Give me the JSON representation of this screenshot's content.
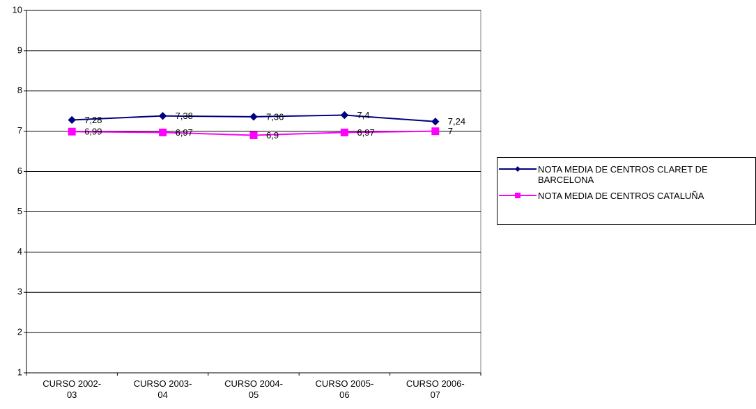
{
  "chart_data": {
    "type": "line",
    "categories": [
      "CURSO 2002-03",
      "CURSO 2003-04",
      "CURSO 2004-05",
      "CURSO 2005-06",
      "CURSO 2006-07"
    ],
    "series": [
      {
        "name": "NOTA MEDIA DE CENTROS CLARET DE BARCELONA",
        "color": "#000080",
        "marker": "diamond",
        "values": [
          7.28,
          7.38,
          7.36,
          7.4,
          7.24
        ],
        "value_labels": [
          "7,28",
          "7,38",
          "7,36",
          "7,4",
          "7,24"
        ]
      },
      {
        "name": "NOTA MEDIA DE CENTROS CATALUÑA",
        "color": "#ff00ff",
        "marker": "square",
        "values": [
          6.99,
          6.97,
          6.9,
          6.97,
          7
        ],
        "value_labels": [
          "6,99",
          "6,97",
          "6,9",
          "6,97",
          "7"
        ]
      }
    ],
    "ylim": [
      1,
      10
    ],
    "yticks": [
      1,
      2,
      3,
      4,
      5,
      6,
      7,
      8,
      9,
      10
    ],
    "grid": true,
    "legend": "right"
  }
}
